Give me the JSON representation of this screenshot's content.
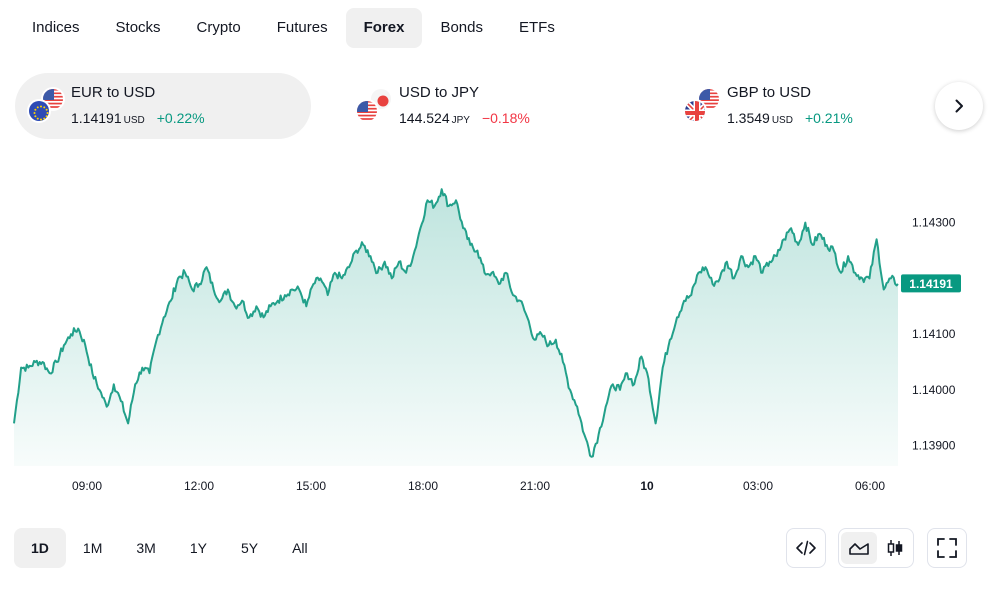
{
  "tabs": [
    "Indices",
    "Stocks",
    "Crypto",
    "Futures",
    "Forex",
    "Bonds",
    "ETFs"
  ],
  "active_tab": "Forex",
  "pairs": [
    {
      "title": "EUR to USD",
      "price": "1.14191",
      "unit": "USD",
      "change": "+0.22%",
      "direction": "up",
      "back_flag": "us-flag-icon",
      "front_flag": "eu-flag-icon"
    },
    {
      "title": "USD to JPY",
      "price": "144.524",
      "unit": "JPY",
      "change": "−0.18%",
      "direction": "down",
      "back_flag": "jp-flag-icon",
      "front_flag": "us-flag-icon"
    },
    {
      "title": "GBP to USD",
      "price": "1.3549",
      "unit": "USD",
      "change": "+0.21%",
      "direction": "up",
      "back_flag": "us-flag-icon",
      "front_flag": "gb-flag-icon"
    }
  ],
  "ranges": [
    "1D",
    "1M",
    "3M",
    "1Y",
    "5Y",
    "All"
  ],
  "active_range": "1D",
  "colors": {
    "up": "#089981",
    "down": "#f23645",
    "line": "#22a08a",
    "badge": "#089981"
  },
  "chart_data": {
    "type": "area",
    "title": "",
    "xlabel": "",
    "ylabel": "",
    "x_ticks": [
      "09:00",
      "12:00",
      "15:00",
      "18:00",
      "21:00",
      "10",
      "03:00",
      "06:00"
    ],
    "y_ticks": [
      "1.13900",
      "1.14000",
      "1.14100",
      "1.14300"
    ],
    "ylim": [
      1.1386,
      1.1438
    ],
    "last_value": "1.14191",
    "grid": false,
    "series": [
      {
        "values": [
          1.1394,
          1.1404,
          1.1404,
          1.1405,
          1.1405,
          1.1403,
          1.1405,
          1.1408,
          1.141,
          1.1411,
          1.1408,
          1.1403,
          1.14,
          1.1397,
          1.1401,
          1.1398,
          1.1394,
          1.1401,
          1.1404,
          1.1403,
          1.1409,
          1.1413,
          1.1416,
          1.142,
          1.1421,
          1.1418,
          1.1419,
          1.1422,
          1.1418,
          1.1416,
          1.1418,
          1.1415,
          1.1416,
          1.1413,
          1.1415,
          1.1413,
          1.1415,
          1.1416,
          1.1417,
          1.1418,
          1.1418,
          1.1415,
          1.1419,
          1.142,
          1.1417,
          1.1421,
          1.142,
          1.1422,
          1.1425,
          1.1426,
          1.1424,
          1.1421,
          1.1423,
          1.142,
          1.1423,
          1.1421,
          1.1424,
          1.1429,
          1.1434,
          1.1433,
          1.1436,
          1.1433,
          1.1434,
          1.1429,
          1.1426,
          1.1425,
          1.1421,
          1.1421,
          1.1419,
          1.1421,
          1.1417,
          1.1416,
          1.1413,
          1.1409,
          1.141,
          1.1408,
          1.1409,
          1.1405,
          1.14,
          1.1397,
          1.1392,
          1.1388,
          1.1392,
          1.1397,
          1.1401,
          1.14,
          1.1403,
          1.1401,
          1.1406,
          1.1402,
          1.1394,
          1.1404,
          1.1409,
          1.1413,
          1.1416,
          1.1417,
          1.1421,
          1.1422,
          1.1419,
          1.142,
          1.1423,
          1.142,
          1.1424,
          1.1422,
          1.1424,
          1.1421,
          1.1423,
          1.1424,
          1.1427,
          1.1429,
          1.1426,
          1.143,
          1.1426,
          1.1428,
          1.1426,
          1.1425,
          1.1421,
          1.1424,
          1.1421,
          1.142,
          1.142,
          1.1427,
          1.1418,
          1.142,
          1.1419
        ]
      }
    ]
  }
}
